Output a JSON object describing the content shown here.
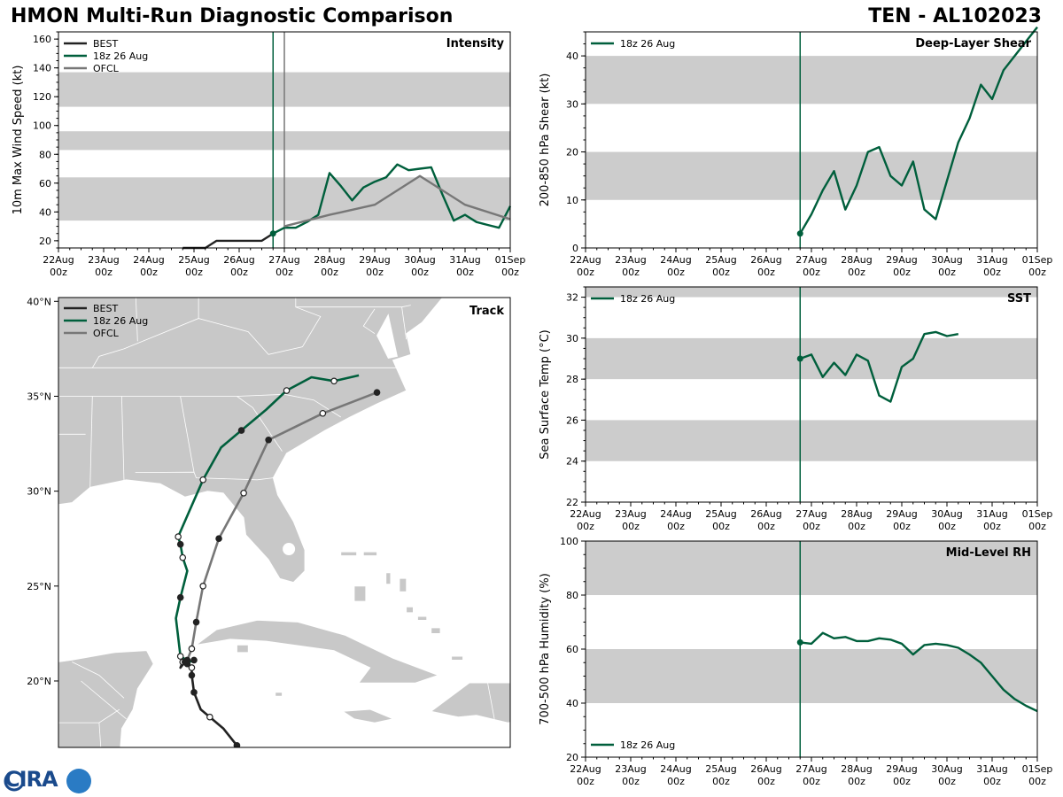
{
  "header": {
    "title_left": "HMON Multi-Run Diagnostic Comparison",
    "title_right": "TEN - AL102023"
  },
  "logo": {
    "text": "CIRA"
  },
  "time_axis": {
    "ticks": [
      "22Aug\n00z",
      "23Aug\n00z",
      "24Aug\n00z",
      "25Aug\n00z",
      "26Aug\n00z",
      "27Aug\n00z",
      "28Aug\n00z",
      "29Aug\n00z",
      "30Aug\n00z",
      "31Aug\n00z",
      "01Sep\n00z"
    ],
    "range_days": [
      0,
      10
    ]
  },
  "colors": {
    "best": "#222222",
    "run": "#005f3c",
    "ofcl": "#777777",
    "band": "#cccccc",
    "land": "#c8c8c8"
  },
  "chart_data": [
    {
      "id": "intensity",
      "type": "line",
      "title": "Intensity",
      "ylabel": "10m Max Wind Speed (kt)",
      "ylim": [
        15,
        165
      ],
      "yticks": [
        20,
        40,
        60,
        80,
        100,
        120,
        140,
        160
      ],
      "bands": [
        [
          34,
          64
        ],
        [
          83,
          96
        ],
        [
          113,
          137
        ]
      ],
      "vlines": [
        {
          "day": 4.75,
          "series": "run"
        },
        {
          "day": 5.0,
          "series": "ofcl"
        }
      ],
      "legend": [
        "BEST",
        "18z 26 Aug",
        "OFCL"
      ],
      "series": [
        {
          "name": "BEST",
          "key": "best",
          "x": [
            2.75,
            3.0,
            3.25,
            3.5,
            3.75,
            4.0,
            4.25,
            4.5,
            4.75
          ],
          "y": [
            15,
            15,
            15,
            20,
            20,
            20,
            20,
            20,
            25
          ]
        },
        {
          "name": "18z 26 Aug",
          "key": "run",
          "x": [
            4.75,
            5.0,
            5.25,
            5.5,
            5.75,
            6.0,
            6.25,
            6.5,
            6.75,
            7.0,
            7.25,
            7.5,
            7.75,
            8.0,
            8.25,
            8.5,
            8.75,
            9.0,
            9.25,
            9.5,
            9.75,
            10.0
          ],
          "y": [
            25,
            29,
            29,
            33,
            38,
            67,
            58,
            48,
            57,
            61,
            64,
            73,
            69,
            70,
            71,
            52,
            34,
            38,
            33,
            31,
            29,
            44
          ],
          "start_marker": true
        },
        {
          "name": "OFCL",
          "key": "ofcl",
          "x": [
            5.0,
            6.0,
            7.0,
            8.0,
            9.0,
            10.0
          ],
          "y": [
            30,
            38,
            45,
            65,
            45,
            35
          ]
        }
      ]
    },
    {
      "id": "shear",
      "type": "line",
      "title": "Deep-Layer Shear",
      "ylabel": "200-850 hPa Shear (kt)",
      "ylim": [
        0,
        45
      ],
      "yticks": [
        0,
        10,
        20,
        30,
        40
      ],
      "bands": [
        [
          10,
          20
        ],
        [
          30,
          40
        ]
      ],
      "vlines": [
        {
          "day": 4.75,
          "series": "run"
        }
      ],
      "legend": [
        "18z 26 Aug"
      ],
      "series": [
        {
          "name": "18z 26 Aug",
          "key": "run",
          "x": [
            4.75,
            5.0,
            5.25,
            5.5,
            5.75,
            6.0,
            6.25,
            6.5,
            6.75,
            7.0,
            7.25,
            7.5,
            7.75,
            8.0,
            8.25,
            8.5,
            8.75,
            9.0,
            9.25,
            9.5,
            9.75,
            10.0
          ],
          "y": [
            3,
            7,
            12,
            16,
            8,
            13,
            20,
            21,
            15,
            13,
            18,
            8,
            6,
            14,
            22,
            27,
            34,
            31,
            37,
            40,
            43,
            46
          ],
          "start_marker": true
        }
      ]
    },
    {
      "id": "sst",
      "type": "line",
      "title": "SST",
      "ylabel": "Sea Surface Temp (°C)",
      "ylim": [
        22,
        32.5
      ],
      "yticks": [
        22,
        24,
        26,
        28,
        30,
        32
      ],
      "bands": [
        [
          24,
          26
        ],
        [
          28,
          30
        ],
        [
          32,
          32.5
        ]
      ],
      "vlines": [
        {
          "day": 4.75,
          "series": "run"
        }
      ],
      "legend": [
        "18z 26 Aug"
      ],
      "series": [
        {
          "name": "18z 26 Aug",
          "key": "run",
          "x": [
            4.75,
            5.0,
            5.25,
            5.5,
            5.75,
            6.0,
            6.25,
            6.5,
            6.75,
            7.0,
            7.25,
            7.5,
            7.75,
            8.0,
            8.25
          ],
          "y": [
            29.0,
            29.2,
            28.1,
            28.8,
            28.2,
            29.2,
            28.9,
            27.2,
            26.9,
            28.6,
            29.0,
            30.2,
            30.3,
            30.1,
            30.2
          ],
          "start_marker": true
        }
      ]
    },
    {
      "id": "rh",
      "type": "line",
      "title": "Mid-Level RH",
      "ylabel": "700-500 hPa Humidity (%)",
      "ylim": [
        20,
        100
      ],
      "yticks": [
        20,
        40,
        60,
        80,
        100
      ],
      "bands": [
        [
          40,
          60
        ],
        [
          80,
          100
        ]
      ],
      "vlines": [
        {
          "day": 4.75,
          "series": "run"
        }
      ],
      "legend": [
        "18z 26 Aug"
      ],
      "legend_pos": "bottom-left",
      "series": [
        {
          "name": "18z 26 Aug",
          "key": "run",
          "x": [
            4.75,
            5.0,
            5.25,
            5.5,
            5.75,
            6.0,
            6.25,
            6.5,
            6.75,
            7.0,
            7.25,
            7.5,
            7.75,
            8.0,
            8.25,
            8.5,
            8.75,
            9.0,
            9.25,
            9.5,
            9.75,
            10.0
          ],
          "y": [
            62.5,
            62,
            66,
            64,
            64.5,
            63,
            63,
            64,
            63.5,
            62,
            58,
            61.5,
            62,
            61.5,
            60.5,
            58,
            55,
            50,
            45,
            41.5,
            39,
            37
          ],
          "start_marker": true
        }
      ]
    },
    {
      "id": "track",
      "type": "map",
      "title": "Track",
      "lon_range": [
        -91,
        -71
      ],
      "lat_range": [
        16.5,
        40.2
      ],
      "lat_ticks": [
        "20°N",
        "25°N",
        "30°N",
        "35°N",
        "40°N"
      ],
      "lat_tick_values": [
        20,
        25,
        30,
        35,
        40
      ],
      "legend": [
        "BEST",
        "18z 26 Aug",
        "OFCL"
      ],
      "series": [
        {
          "name": "BEST",
          "key": "best",
          "lon": [
            -83.1,
            -83.7,
            -84.3,
            -84.7,
            -85.0,
            -85.1,
            -85.1,
            -85.3,
            -85.5,
            -85.6,
            -85.4,
            -85.3
          ],
          "lat": [
            16.6,
            17.5,
            18.1,
            18.5,
            19.4,
            20.3,
            20.7,
            20.9,
            21.0,
            20.7,
            21.0,
            21.2
          ],
          "filled": [
            true,
            false,
            false,
            false,
            true,
            true,
            false,
            true,
            false,
            false,
            true,
            false
          ]
        },
        {
          "name": "18z 26 Aug",
          "key": "run",
          "lon": [
            -85.0,
            -85.2,
            -85.6,
            -85.8,
            -85.6,
            -85.3,
            -85.5,
            -85.6,
            -85.7,
            -85.3,
            -84.6,
            -83.8,
            -82.9,
            -81.8,
            -80.9,
            -79.8,
            -78.8,
            -77.7
          ],
          "lat": [
            21.1,
            21.0,
            21.3,
            23.3,
            24.4,
            25.8,
            26.5,
            27.2,
            27.6,
            28.7,
            30.6,
            32.3,
            33.2,
            34.3,
            35.3,
            36.0,
            35.8,
            36.1
          ],
          "filled": [
            true,
            false,
            false,
            false,
            true,
            false,
            false,
            true,
            false,
            false,
            false,
            false,
            true,
            false,
            false,
            false,
            false,
            false
          ]
        },
        {
          "name": "OFCL",
          "key": "ofcl",
          "lon": [
            -85.3,
            -85.1,
            -84.9,
            -84.6,
            -83.9,
            -82.8,
            -81.7,
            -79.3,
            -76.9
          ],
          "lat": [
            21.1,
            21.7,
            23.1,
            25.0,
            27.5,
            29.9,
            32.7,
            34.1,
            35.2
          ],
          "filled": [
            true,
            false,
            true,
            false,
            true,
            false,
            true,
            false,
            true
          ]
        }
      ]
    }
  ]
}
